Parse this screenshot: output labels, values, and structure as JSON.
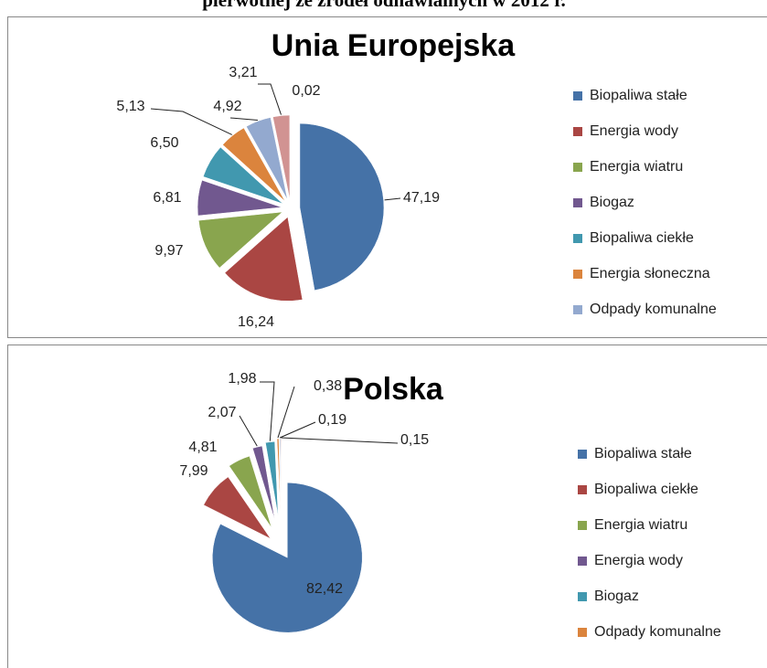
{
  "page_title": "pierwotnej ze źródeł odnawialnych w 2012 r.",
  "chart_data": [
    {
      "type": "pie",
      "title": "Unia Europejska",
      "categories": [
        "Biopaliwa stałe",
        "Energia wody",
        "Energia wiatru",
        "Biogaz",
        "Biopaliwa ciekłe",
        "Energia słoneczna",
        "Odpady komunalne",
        null,
        null
      ],
      "values": [
        47.19,
        16.24,
        9.97,
        6.81,
        6.5,
        5.13,
        4.92,
        3.21,
        0.02
      ],
      "value_labels": [
        "47,19",
        "16,24",
        "9,97",
        "6,81",
        "6,50",
        "5,13",
        "4,92",
        "3,21",
        "0,02"
      ],
      "colors": [
        "#4572a7",
        "#aa4643",
        "#89a54e",
        "#71588f",
        "#4198af",
        "#db843d",
        "#93a9cf",
        "#d19392",
        "#b9cd96"
      ],
      "legend": "right"
    },
    {
      "type": "pie",
      "title": "Polska",
      "categories": [
        "Biopaliwa stałe",
        "Biopaliwa ciekłe",
        "Energia wiatru",
        "Energia wody",
        "Biogaz",
        "Odpady komunalne",
        null,
        null
      ],
      "values": [
        82.42,
        7.99,
        4.81,
        2.07,
        1.98,
        0.38,
        0.19,
        0.15
      ],
      "value_labels": [
        "82,42",
        "7,99",
        "4,81",
        "2,07",
        "1,98",
        "0,38",
        "0,19",
        "0,15"
      ],
      "colors": [
        "#4572a7",
        "#aa4643",
        "#89a54e",
        "#71588f",
        "#4198af",
        "#db843d",
        "#93a9cf",
        "#d19392"
      ],
      "legend": "right"
    }
  ]
}
